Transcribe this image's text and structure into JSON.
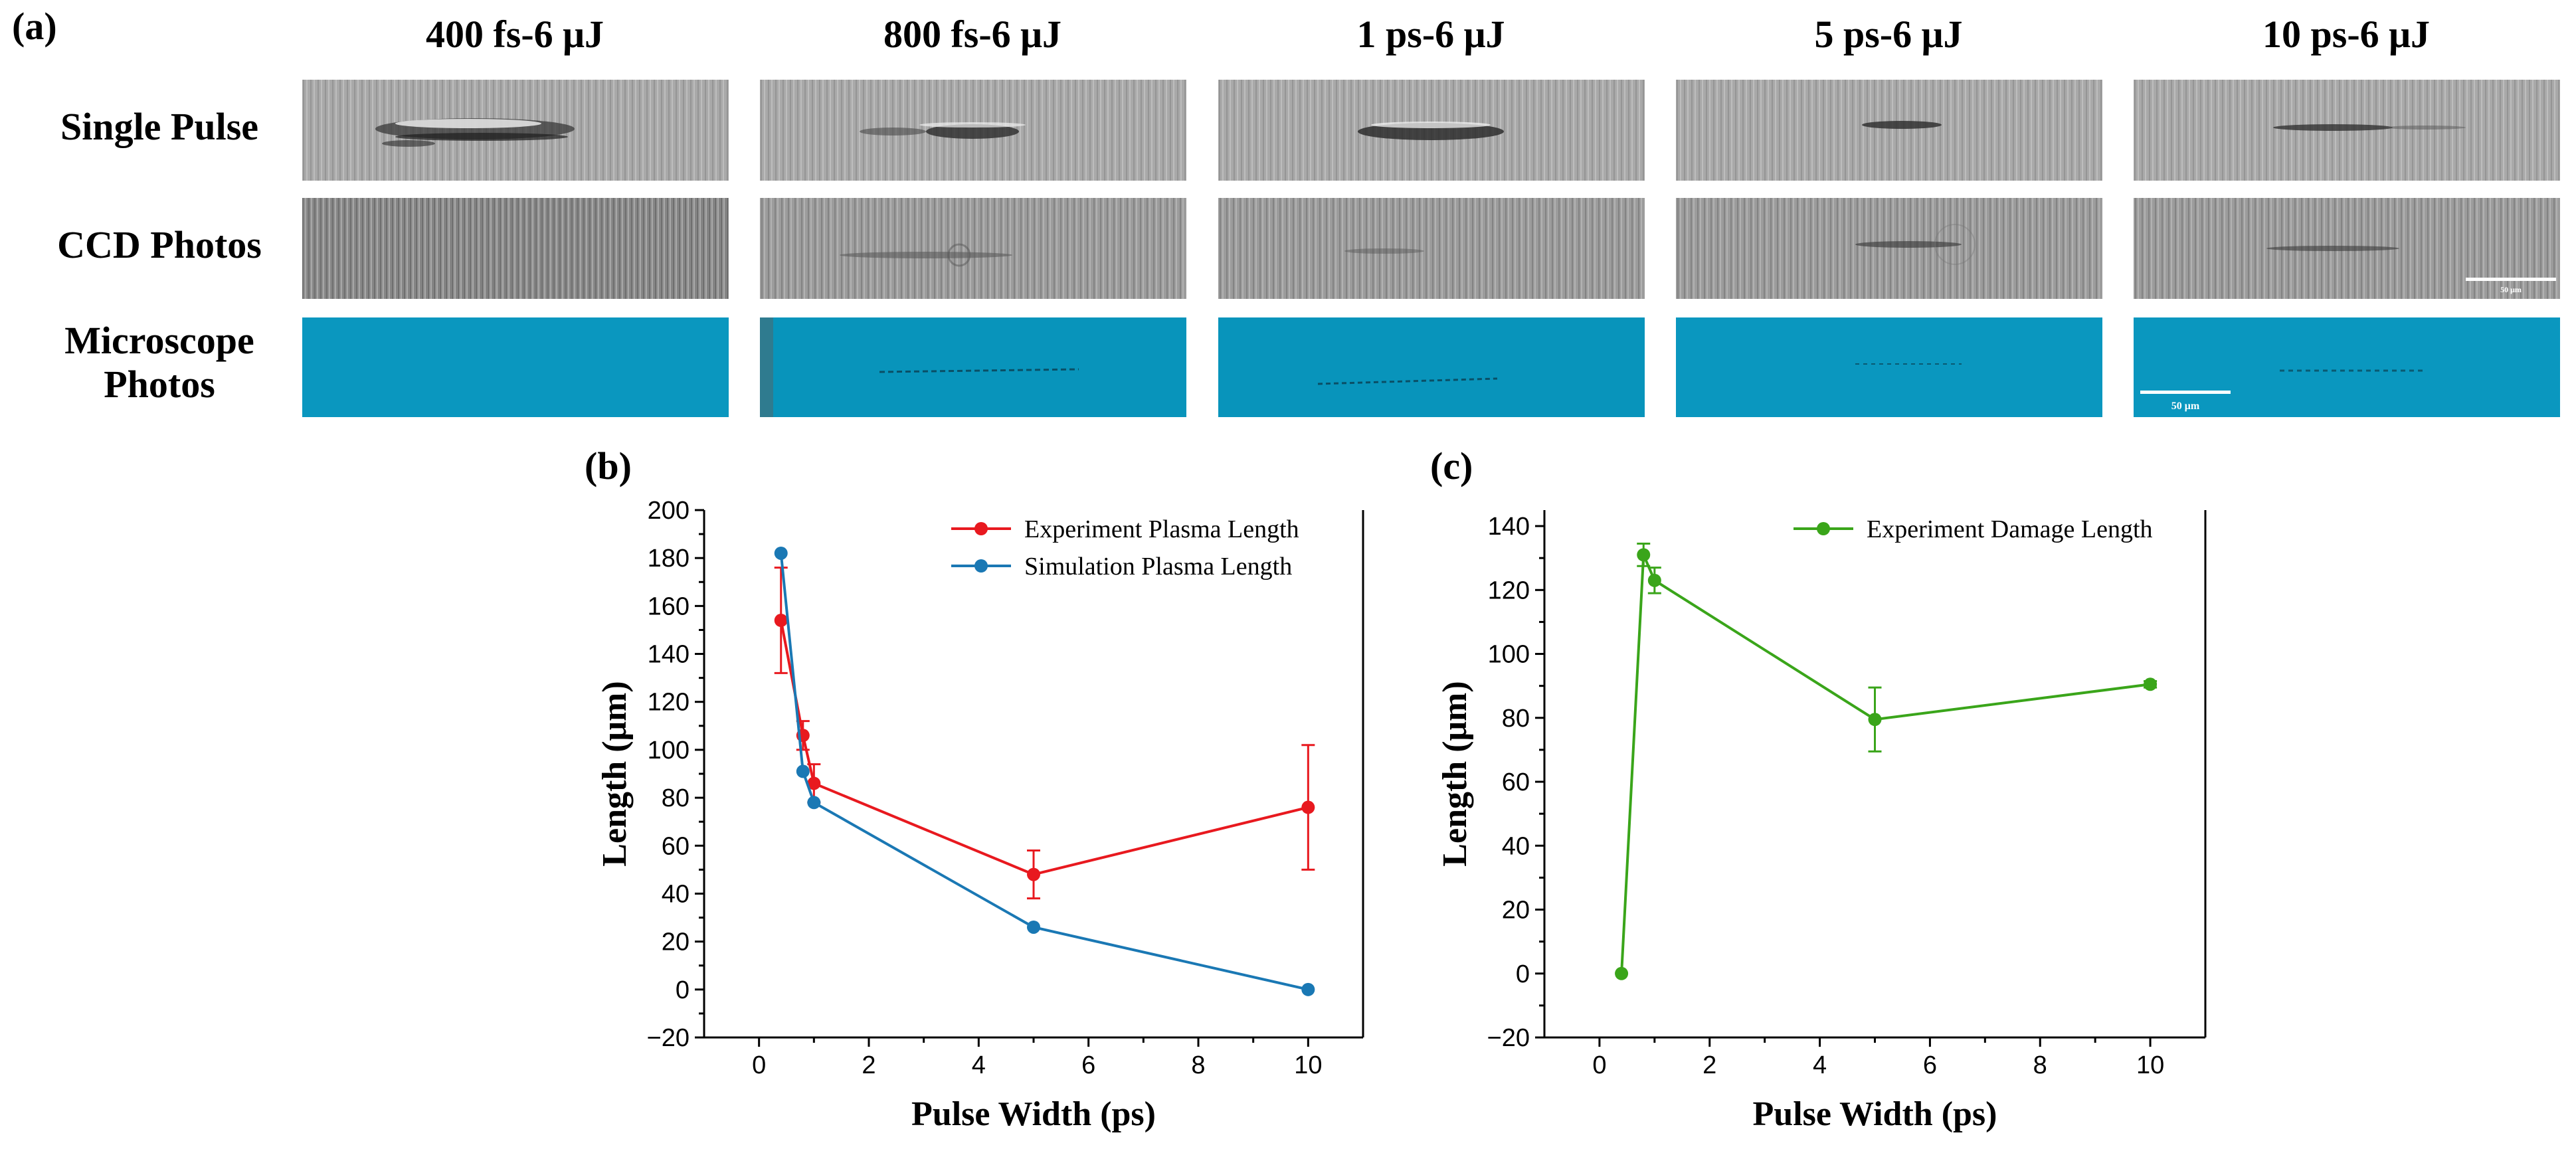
{
  "figure": {
    "panel_labels": [
      "(a)",
      "(b)",
      "(c)"
    ],
    "columns": [
      "400 fs-6 μJ",
      "800 fs-6 μJ",
      "1 ps-6 μJ",
      "5 ps-6 μJ",
      "10 ps-6 μJ"
    ],
    "rows": {
      "single_pulse": "Single Pulse",
      "ccd_photos": "CCD Photos",
      "microscope_line1": "Microscope",
      "microscope_line2": "Photos"
    },
    "scale_bars": {
      "ccd": "50 μm",
      "microscope": "50 μm"
    }
  },
  "colors": {
    "experiment_red": "#e8191f",
    "simulation_blue": "#1a78b4",
    "damage_green": "#3aa51a",
    "microscope_cyan": "#0795bd"
  },
  "chart_data": [
    {
      "type": "line",
      "panel": "(b)",
      "xlabel": "Pulse Width (ps)",
      "ylabel": "Length (μm)",
      "xlim": [
        -1,
        11
      ],
      "ylim": [
        -20,
        200
      ],
      "xticks": [
        0,
        2,
        4,
        6,
        8,
        10
      ],
      "yticks": [
        -20,
        0,
        20,
        40,
        60,
        80,
        100,
        120,
        140,
        160,
        180,
        200
      ],
      "ytick_labels": [
        "−20",
        "0",
        "20",
        "40",
        "60",
        "80",
        "100",
        "120",
        "140",
        "160",
        "180",
        "200"
      ],
      "legend_position": "top-right",
      "series": [
        {
          "name": "Experiment Plasma Length",
          "color": "#e8191f",
          "x": [
            0.4,
            0.8,
            1,
            5,
            10
          ],
          "y": [
            154,
            106,
            86,
            48,
            76
          ],
          "err": [
            22,
            6,
            8,
            10,
            26
          ]
        },
        {
          "name": "Simulation Plasma Length",
          "color": "#1a78b4",
          "x": [
            0.4,
            0.8,
            1,
            5,
            10
          ],
          "y": [
            182,
            91,
            78,
            26,
            0
          ],
          "err": [
            0,
            0,
            0,
            0,
            0
          ]
        }
      ]
    },
    {
      "type": "line",
      "panel": "(c)",
      "xlabel": "Pulse Width (ps)",
      "ylabel": "Length (μm)",
      "xlim": [
        -1,
        11
      ],
      "ylim": [
        -20,
        145
      ],
      "xticks": [
        0,
        2,
        4,
        6,
        8,
        10
      ],
      "yticks": [
        -20,
        0,
        20,
        40,
        60,
        80,
        100,
        120,
        140
      ],
      "ytick_labels": [
        "−20",
        "0",
        "20",
        "40",
        "60",
        "80",
        "100",
        "120",
        "140"
      ],
      "legend_position": "top-right",
      "series": [
        {
          "name": "Experiment Damage Length",
          "color": "#3aa51a",
          "x": [
            0.4,
            0.8,
            1,
            5,
            10
          ],
          "y": [
            0,
            131,
            123,
            79.5,
            90.5
          ],
          "err": [
            0,
            3.5,
            4,
            10,
            1
          ]
        }
      ]
    }
  ]
}
